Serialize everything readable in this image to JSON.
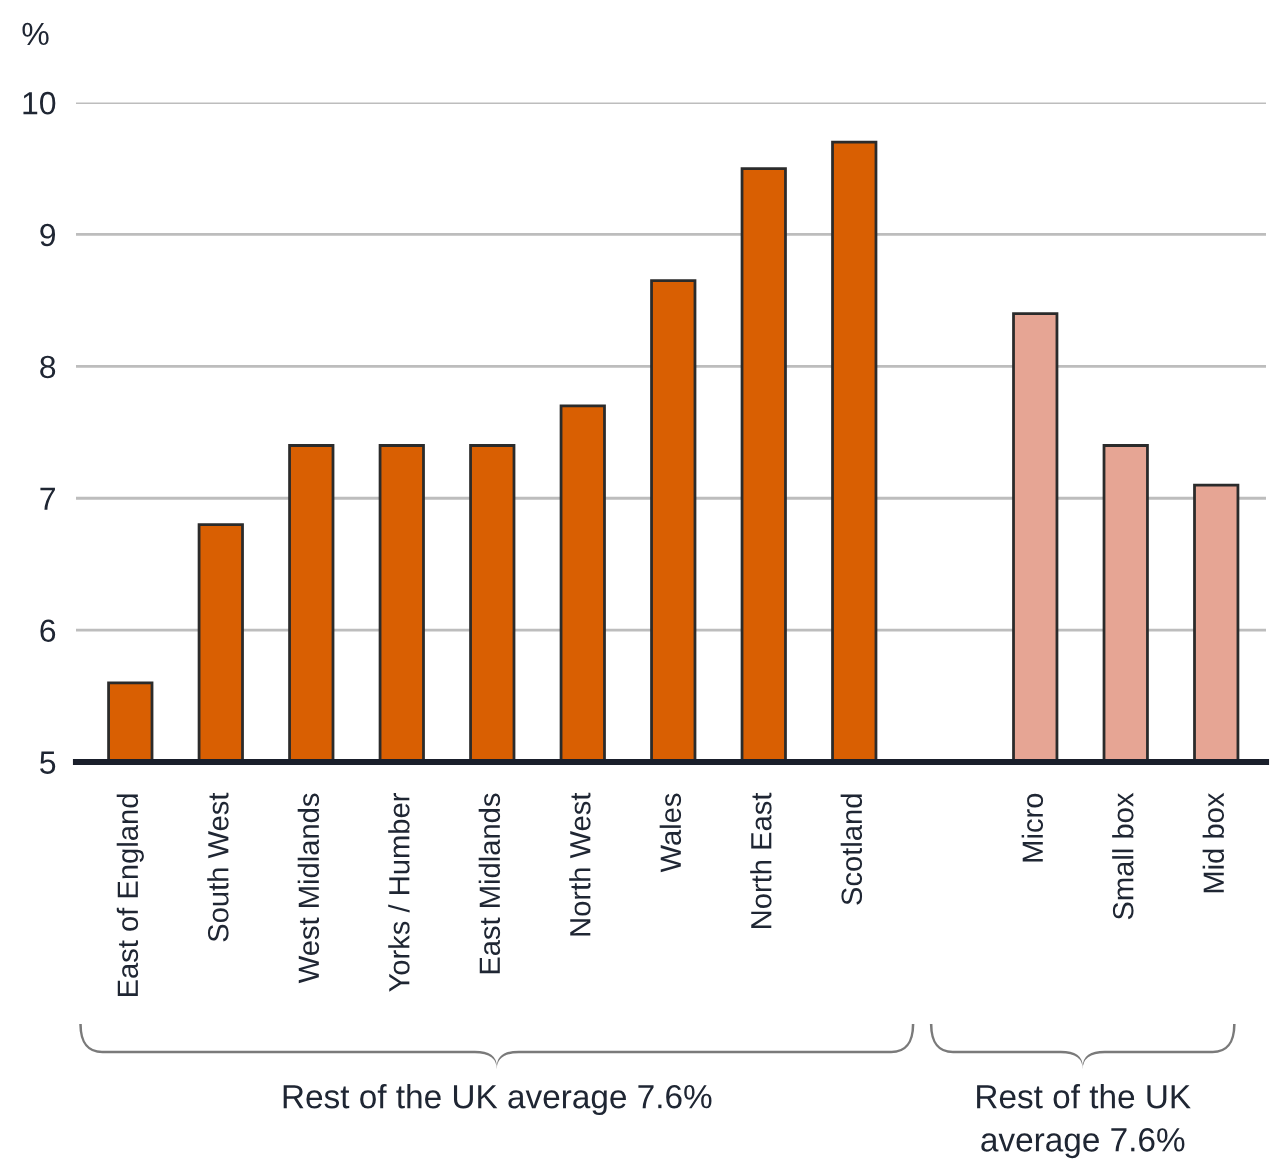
{
  "chart_data": {
    "type": "bar",
    "ylabel": "%",
    "categories": [
      "East of England",
      "South West",
      "West Midlands",
      "Yorks / Humber",
      "East Midlands",
      "North West",
      "Wales",
      "North East",
      "Scotland",
      null,
      "Micro",
      "Small box",
      "Mid box"
    ],
    "values": [
      5.6,
      6.8,
      7.4,
      7.4,
      7.4,
      7.7,
      8.65,
      9.5,
      9.7,
      null,
      8.4,
      7.4,
      7.1
    ],
    "colors": [
      "#d95f02",
      "#d95f02",
      "#d95f02",
      "#d95f02",
      "#d95f02",
      "#d95f02",
      "#d95f02",
      "#d95f02",
      "#d95f02",
      null,
      "#e6a594",
      "#e6a594",
      "#e6a594"
    ],
    "ylim": [
      5,
      10
    ],
    "yticks": [
      5,
      6,
      7,
      8,
      9,
      10
    ],
    "grid": "y",
    "annotations": [
      "Rest of the UK average 7.6%",
      "Rest of the UK\naverage 7.6%"
    ]
  }
}
